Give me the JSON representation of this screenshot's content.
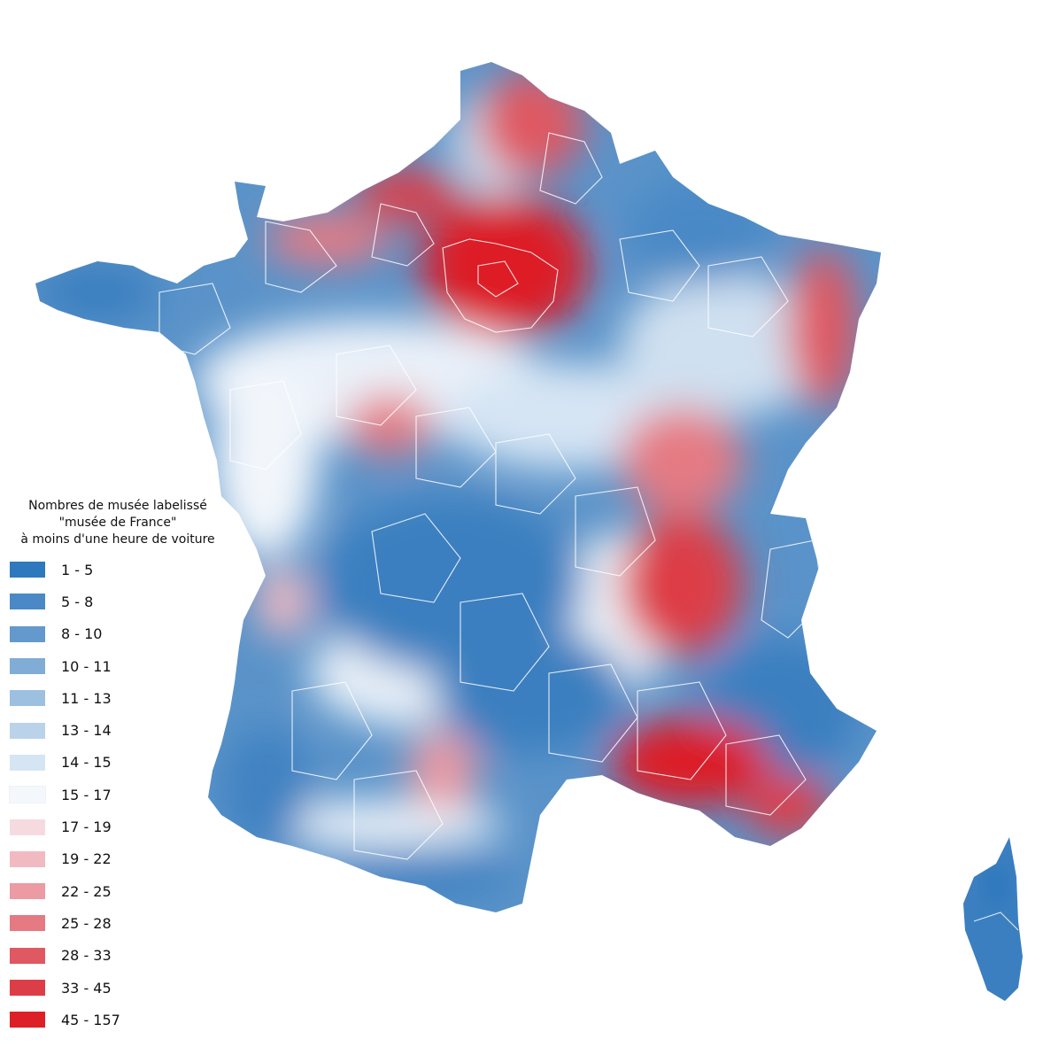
{
  "legend": {
    "title_lines": [
      "Nombres de musée labelissé",
      "\"musée de France\"",
      "à moins d'une heure de voiture"
    ],
    "items": [
      {
        "label": "1 - 5",
        "color": "#2e78bd"
      },
      {
        "label": "5 - 8",
        "color": "#4a89c6"
      },
      {
        "label": "8 - 10",
        "color": "#6399cd"
      },
      {
        "label": "10 - 11",
        "color": "#80acd6"
      },
      {
        "label": "11 - 13",
        "color": "#9dc0e0"
      },
      {
        "label": "13 - 14",
        "color": "#bad3ea"
      },
      {
        "label": "14 - 15",
        "color": "#d6e5f4"
      },
      {
        "label": "15 - 17",
        "color": "#f4f8fd"
      },
      {
        "label": "17 - 19",
        "color": "#f5dbe0"
      },
      {
        "label": "19 - 22",
        "color": "#f1bac2"
      },
      {
        "label": "22 - 25",
        "color": "#ec9aa3"
      },
      {
        "label": "25 - 28",
        "color": "#e57a83"
      },
      {
        "label": "28 - 33",
        "color": "#df5862"
      },
      {
        "label": "33 - 45",
        "color": "#dd3d46"
      },
      {
        "label": "45 - 157",
        "color": "#dd1f27"
      }
    ]
  }
}
